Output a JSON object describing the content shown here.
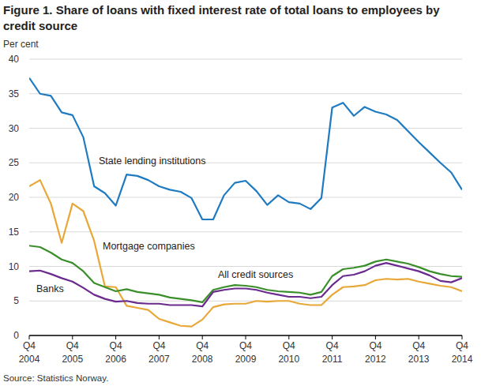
{
  "chart_data": {
    "type": "line",
    "title": "Figure 1. Share of loans with fixed interest rate of total loans to employees by credit source",
    "y_label": "Per cent",
    "source": "Source: Statistics Norway.",
    "categories": [
      "Q4\n2004",
      null,
      null,
      null,
      "Q4\n2005",
      null,
      null,
      null,
      "Q4\n2006",
      null,
      null,
      null,
      "Q4\n2007",
      null,
      null,
      null,
      "Q4\n2008",
      null,
      null,
      null,
      "Q4\n2009",
      null,
      null,
      null,
      "Q4\n2010",
      null,
      null,
      null,
      "Q4\n2011",
      null,
      null,
      null,
      "Q4\n2012",
      null,
      null,
      null,
      "Q4\n2013",
      null,
      null,
      null,
      "Q4\n2014"
    ],
    "series": [
      {
        "name": "State lending institutions",
        "color": "#1f7bc1",
        "values": [
          37.3,
          35.0,
          34.7,
          32.3,
          31.9,
          28.7,
          21.6,
          20.6,
          18.8,
          23.3,
          23.1,
          22.5,
          21.6,
          21.1,
          20.8,
          19.9,
          16.8,
          16.8,
          20.3,
          22.1,
          22.4,
          20.9,
          18.9,
          20.3,
          19.3,
          19.1,
          18.3,
          19.9,
          33.0,
          33.7,
          31.8,
          33.1,
          32.4,
          32.0,
          31.2,
          29.6,
          28.0,
          26.5,
          25.0,
          23.6,
          21.1
        ]
      },
      {
        "name": "Mortgage companies",
        "color": "#e8a838",
        "values": [
          21.6,
          22.5,
          19.1,
          13.4,
          19.1,
          18.0,
          13.7,
          7.1,
          7.0,
          4.3,
          4.0,
          3.7,
          2.4,
          1.9,
          1.4,
          1.3,
          2.3,
          4.1,
          4.5,
          4.6,
          4.6,
          5.0,
          4.9,
          5.0,
          5.0,
          4.6,
          4.4,
          4.4,
          5.9,
          7.0,
          7.1,
          7.3,
          8.0,
          8.2,
          8.1,
          8.2,
          7.8,
          7.5,
          7.2,
          7.0,
          6.4
        ]
      },
      {
        "name": "All credit sources",
        "color": "#3b8f2b",
        "values": [
          13.0,
          12.8,
          12.0,
          11.0,
          10.5,
          9.3,
          7.6,
          7.0,
          6.4,
          6.7,
          6.3,
          6.1,
          5.9,
          5.5,
          5.3,
          5.1,
          4.8,
          6.6,
          7.0,
          7.3,
          7.2,
          7.0,
          6.6,
          6.4,
          6.3,
          6.2,
          5.9,
          6.3,
          8.6,
          9.6,
          9.8,
          10.1,
          10.7,
          11.0,
          10.7,
          10.4,
          9.9,
          9.3,
          8.9,
          8.6,
          8.5
        ]
      },
      {
        "name": "Banks",
        "color": "#6a2a8e",
        "values": [
          9.3,
          9.4,
          8.9,
          8.3,
          7.8,
          6.9,
          5.9,
          5.3,
          4.9,
          5.0,
          4.7,
          4.6,
          4.6,
          4.4,
          4.4,
          4.4,
          4.2,
          6.3,
          6.6,
          6.8,
          6.8,
          6.6,
          6.2,
          5.9,
          5.6,
          5.6,
          5.4,
          5.6,
          7.3,
          8.6,
          8.8,
          9.3,
          10.1,
          10.5,
          10.1,
          9.7,
          9.3,
          8.7,
          7.9,
          7.7,
          8.3
        ]
      }
    ],
    "ylim": [
      0,
      40
    ],
    "yticks": [
      0,
      5,
      10,
      15,
      20,
      25,
      30,
      35,
      40
    ],
    "grid": true
  }
}
